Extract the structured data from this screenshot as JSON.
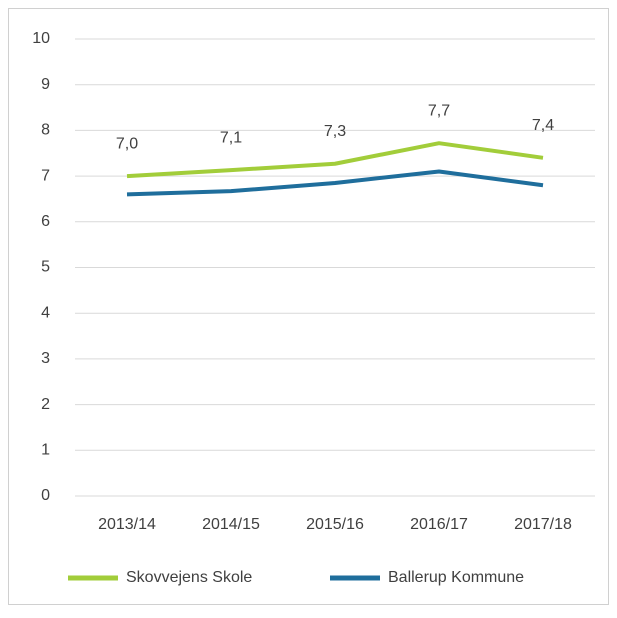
{
  "chart_data": {
    "type": "line",
    "categories": [
      "2013/14",
      "2014/15",
      "2015/16",
      "2016/17",
      "2017/18"
    ],
    "series": [
      {
        "name": "Skovvejens Skole",
        "color": "#a2cd3a",
        "values": [
          7.0,
          7.13,
          7.27,
          7.72,
          7.4
        ],
        "value_labels": [
          "7,0",
          "7,1",
          "7,3",
          "7,7",
          "7,4"
        ]
      },
      {
        "name": "Ballerup Kommune",
        "color": "#1f6e9c",
        "values": [
          6.6,
          6.67,
          6.85,
          7.1,
          6.8
        ]
      }
    ],
    "ylim": [
      0,
      10
    ],
    "yticks": [
      0,
      1,
      2,
      3,
      4,
      5,
      6,
      7,
      8,
      9,
      10
    ],
    "grid": true,
    "legend": "bottom"
  }
}
